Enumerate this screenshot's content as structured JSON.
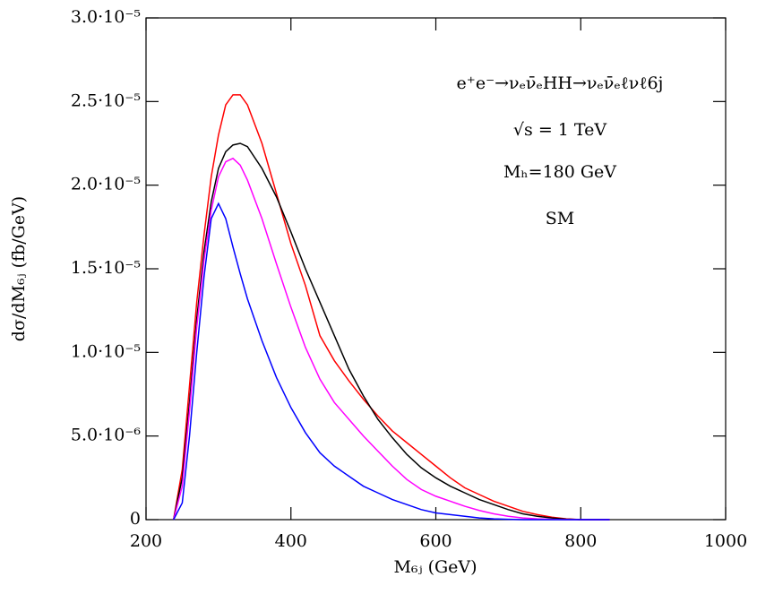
{
  "chart_data": {
    "type": "line",
    "xlabel": "M₆ⱼ (GeV)",
    "ylabel": "dσ/dM₆ⱼ (fb/GeV)",
    "annotations": [
      "e⁺e⁻→νₑν̄ₑHH→νₑν̄ₑℓνℓ6j",
      "√s = 1 TeV",
      "Mₕ=180 GeV",
      "SM"
    ],
    "xlim": [
      200,
      1000
    ],
    "ylim": [
      0,
      3e-05
    ],
    "xticks": [
      200,
      400,
      600,
      800,
      1000
    ],
    "yticks": [
      0,
      {
        "value": 5e-06,
        "label": "5.0·10⁻⁶"
      },
      {
        "value": 1e-05,
        "label": "1.0·10⁻⁵"
      },
      {
        "value": 1.5e-05,
        "label": "1.5·10⁻⁵"
      },
      {
        "value": 2e-05,
        "label": "2.0·10⁻⁵"
      },
      {
        "value": 2.5e-05,
        "label": "2.5·10⁻⁵"
      },
      {
        "value": 3e-05,
        "label": "3.0·10⁻⁵"
      }
    ],
    "x": [
      238,
      250,
      260,
      270,
      280,
      290,
      300,
      310,
      320,
      330,
      340,
      360,
      380,
      400,
      420,
      440,
      460,
      480,
      500,
      520,
      540,
      560,
      580,
      600,
      620,
      640,
      660,
      680,
      700,
      720,
      740,
      760,
      780,
      800,
      840
    ],
    "series": [
      {
        "color": "#ff0000",
        "values": [
          0,
          3e-06,
          8e-06,
          1.3e-05,
          1.7e-05,
          2.05e-05,
          2.3e-05,
          2.48e-05,
          2.54e-05,
          2.54e-05,
          2.48e-05,
          2.25e-05,
          1.95e-05,
          1.65e-05,
          1.4e-05,
          1.1e-05,
          9.5e-06,
          8.3e-06,
          7.2e-06,
          6.2e-06,
          5.3e-06,
          4.6e-06,
          3.9e-06,
          3.2e-06,
          2.5e-06,
          1.9e-06,
          1.5e-06,
          1.1e-06,
          8e-07,
          5e-07,
          3e-07,
          1.5e-07,
          5e-08,
          0,
          0
        ]
      },
      {
        "color": "#000000",
        "values": [
          0,
          2.5e-06,
          7e-06,
          1.2e-05,
          1.6e-05,
          1.9e-05,
          2.1e-05,
          2.2e-05,
          2.24e-05,
          2.25e-05,
          2.23e-05,
          2.1e-05,
          1.93e-05,
          1.72e-05,
          1.5e-05,
          1.3e-05,
          1.1e-05,
          9e-06,
          7.4e-06,
          6e-06,
          4.9e-06,
          3.9e-06,
          3.1e-06,
          2.5e-06,
          2e-06,
          1.6e-06,
          1.2e-06,
          9e-07,
          6e-07,
          3.5e-07,
          2e-07,
          1e-07,
          3e-08,
          0,
          0
        ]
      },
      {
        "color": "#ff00ff",
        "values": [
          0,
          2e-06,
          6.5e-06,
          1.15e-05,
          1.55e-05,
          1.85e-05,
          2.05e-05,
          2.14e-05,
          2.16e-05,
          2.12e-05,
          2.03e-05,
          1.8e-05,
          1.53e-05,
          1.27e-05,
          1.03e-05,
          8.4e-06,
          7e-06,
          6e-06,
          5e-06,
          4.1e-06,
          3.2e-06,
          2.4e-06,
          1.8e-06,
          1.4e-06,
          1.1e-06,
          8e-07,
          5.5e-07,
          3.5e-07,
          2e-07,
          1e-07,
          5e-08,
          2e-08,
          0,
          0,
          0
        ]
      },
      {
        "color": "#0000ff",
        "values": [
          0,
          1e-06,
          5e-06,
          1e-05,
          1.45e-05,
          1.8e-05,
          1.89e-05,
          1.8e-05,
          1.63e-05,
          1.47e-05,
          1.32e-05,
          1.07e-05,
          8.5e-06,
          6.7e-06,
          5.2e-06,
          4e-06,
          3.2e-06,
          2.6e-06,
          2e-06,
          1.6e-06,
          1.2e-06,
          9e-07,
          6e-07,
          4e-07,
          3e-07,
          2e-07,
          1e-07,
          5e-08,
          2e-08,
          0,
          0,
          0,
          0,
          0,
          0
        ]
      }
    ]
  }
}
